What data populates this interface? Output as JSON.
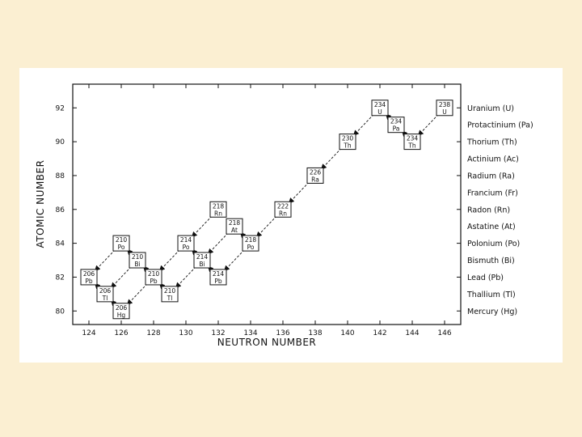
{
  "chart_data": {
    "type": "scatter",
    "xlabel": "NEUTRON NUMBER",
    "ylabel": "ATOMIC NUMBER",
    "xlim": [
      123,
      147
    ],
    "ylim": [
      79.2,
      93.4
    ],
    "x_ticks": [
      124,
      126,
      128,
      130,
      132,
      134,
      136,
      138,
      140,
      142,
      144,
      146
    ],
    "y_ticks": [
      80,
      82,
      84,
      86,
      88,
      90,
      92
    ],
    "grid": false,
    "element_labels": [
      {
        "z": 92,
        "text": "Uranium (U)"
      },
      {
        "z": 91,
        "text": "Protactinium (Pa)"
      },
      {
        "z": 90,
        "text": "Thorium (Th)"
      },
      {
        "z": 89,
        "text": "Actinium (Ac)"
      },
      {
        "z": 88,
        "text": "Radium (Ra)"
      },
      {
        "z": 87,
        "text": "Francium (Fr)"
      },
      {
        "z": 86,
        "text": "Radon (Rn)"
      },
      {
        "z": 85,
        "text": "Astatine (At)"
      },
      {
        "z": 84,
        "text": "Polonium (Po)"
      },
      {
        "z": 83,
        "text": "Bismuth (Bi)"
      },
      {
        "z": 82,
        "text": "Lead (Pb)"
      },
      {
        "z": 81,
        "text": "Thallium (Tl)"
      },
      {
        "z": 80,
        "text": "Mercury (Hg)"
      }
    ],
    "nuclides": [
      {
        "id": "U238",
        "n": 146,
        "z": 92,
        "mass": "238",
        "symbol": "U"
      },
      {
        "id": "Th234",
        "n": 144,
        "z": 90,
        "mass": "234",
        "symbol": "Th"
      },
      {
        "id": "Pa234",
        "n": 143,
        "z": 91,
        "mass": "234",
        "symbol": "Pa"
      },
      {
        "id": "U234",
        "n": 142,
        "z": 92,
        "mass": "234",
        "symbol": "U"
      },
      {
        "id": "Th230",
        "n": 140,
        "z": 90,
        "mass": "230",
        "symbol": "Th"
      },
      {
        "id": "Ra226",
        "n": 138,
        "z": 88,
        "mass": "226",
        "symbol": "Ra"
      },
      {
        "id": "Rn222",
        "n": 136,
        "z": 86,
        "mass": "222",
        "symbol": "Rn"
      },
      {
        "id": "Po218",
        "n": 134,
        "z": 84,
        "mass": "218",
        "symbol": "Po"
      },
      {
        "id": "At218",
        "n": 133,
        "z": 85,
        "mass": "218",
        "symbol": "At"
      },
      {
        "id": "Rn218",
        "n": 132,
        "z": 86,
        "mass": "218",
        "symbol": "Rn"
      },
      {
        "id": "Pb214",
        "n": 132,
        "z": 82,
        "mass": "214",
        "symbol": "Pb"
      },
      {
        "id": "Bi214",
        "n": 131,
        "z": 83,
        "mass": "214",
        "symbol": "Bi"
      },
      {
        "id": "Po214",
        "n": 130,
        "z": 84,
        "mass": "214",
        "symbol": "Po"
      },
      {
        "id": "Tl210",
        "n": 129,
        "z": 81,
        "mass": "210",
        "symbol": "Tl"
      },
      {
        "id": "Pb210",
        "n": 128,
        "z": 82,
        "mass": "210",
        "symbol": "Pb"
      },
      {
        "id": "Bi210",
        "n": 127,
        "z": 83,
        "mass": "210",
        "symbol": "Bi"
      },
      {
        "id": "Po210",
        "n": 126,
        "z": 84,
        "mass": "210",
        "symbol": "Po"
      },
      {
        "id": "Hg206",
        "n": 126,
        "z": 80,
        "mass": "206",
        "symbol": "Hg"
      },
      {
        "id": "Tl206",
        "n": 125,
        "z": 81,
        "mass": "206",
        "symbol": "Tl"
      },
      {
        "id": "Pb206",
        "n": 124,
        "z": 82,
        "mass": "206",
        "symbol": "Pb"
      }
    ],
    "decays": [
      {
        "from": "U238",
        "to": "Th234",
        "mode": "alpha"
      },
      {
        "from": "Th234",
        "to": "Pa234",
        "mode": "beta"
      },
      {
        "from": "Pa234",
        "to": "U234",
        "mode": "beta"
      },
      {
        "from": "U234",
        "to": "Th230",
        "mode": "alpha"
      },
      {
        "from": "Th230",
        "to": "Ra226",
        "mode": "alpha"
      },
      {
        "from": "Ra226",
        "to": "Rn222",
        "mode": "alpha"
      },
      {
        "from": "Rn222",
        "to": "Po218",
        "mode": "alpha"
      },
      {
        "from": "Po218",
        "to": "At218",
        "mode": "beta"
      },
      {
        "from": "At218",
        "to": "Bi214",
        "mode": "alpha"
      },
      {
        "from": "Po218",
        "to": "Pb214",
        "mode": "alpha"
      },
      {
        "from": "Rn218",
        "to": "Po214",
        "mode": "alpha"
      },
      {
        "from": "Pb214",
        "to": "Bi214",
        "mode": "beta"
      },
      {
        "from": "Bi214",
        "to": "Po214",
        "mode": "beta"
      },
      {
        "from": "Bi214",
        "to": "Tl210",
        "mode": "alpha"
      },
      {
        "from": "Po214",
        "to": "Pb210",
        "mode": "alpha"
      },
      {
        "from": "Tl210",
        "to": "Pb210",
        "mode": "beta"
      },
      {
        "from": "Pb210",
        "to": "Bi210",
        "mode": "beta"
      },
      {
        "from": "Bi210",
        "to": "Po210",
        "mode": "beta"
      },
      {
        "from": "Bi210",
        "to": "Tl206",
        "mode": "alpha"
      },
      {
        "from": "Po210",
        "to": "Pb206",
        "mode": "alpha"
      },
      {
        "from": "Pb210",
        "to": "Hg206",
        "mode": "alpha"
      },
      {
        "from": "Hg206",
        "to": "Tl206",
        "mode": "beta"
      },
      {
        "from": "Tl206",
        "to": "Pb206",
        "mode": "beta"
      }
    ]
  }
}
